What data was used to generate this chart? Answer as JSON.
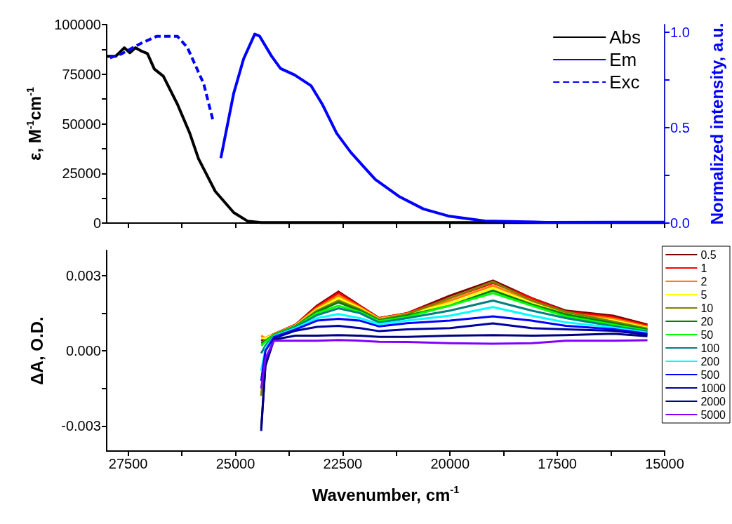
{
  "chart_data": [
    {
      "type": "line",
      "ylabel": "ε, M$^{-1}$cm$^{-1}$",
      "y2label": "Normalized intensity, a.u.",
      "xlim": [
        28000,
        15000
      ],
      "xticks": [
        27500,
        {
          "value": 26250,
          "label": null
        },
        25000,
        {
          "value": 23750,
          "label": null
        },
        22500,
        {
          "value": 21250,
          "label": null
        },
        20000,
        {
          "value": 18750,
          "label": null
        },
        17500,
        {
          "value": 16250,
          "label": null
        },
        15000
      ],
      "ylim": [
        0,
        100000
      ],
      "yticks": [
        0,
        {
          "value": 12500,
          "label": null
        },
        25000,
        {
          "value": 37500,
          "label": null
        },
        50000,
        {
          "value": 62500,
          "label": null
        },
        75000,
        {
          "value": 87500,
          "label": null
        },
        100000
      ],
      "y2lim": [
        0,
        1.04
      ],
      "y2ticks": [
        {
          "value": 0,
          "label": "0.0"
        },
        {
          "value": 0.25,
          "label": null
        },
        0.5,
        {
          "value": 0.75,
          "label": null
        },
        {
          "value": 1,
          "label": "1.0"
        }
      ],
      "tick_labels": "y",
      "legend": "top right",
      "series": [
        {
          "name": "Abs",
          "color": "#000000",
          "x": [
            28000,
            27790,
            27590,
            27460,
            27330,
            27215,
            27050,
            26890,
            26680,
            26350,
            26070,
            25860,
            25470,
            25040,
            24720,
            24400,
            23000,
            21000,
            19000,
            15000
          ],
          "values": [
            84000,
            84000,
            88300,
            85800,
            88300,
            86900,
            85400,
            77600,
            74000,
            59800,
            45600,
            32400,
            16000,
            5300,
            1000,
            300,
            300,
            300,
            300,
            300
          ]
        },
        {
          "name": "Em",
          "color": "#0000ff",
          "axis": "y2",
          "x": [
            25340,
            25040,
            24810,
            24550,
            24440,
            24160,
            23950,
            23620,
            23240,
            22970,
            22640,
            22310,
            21990,
            21740,
            21190,
            20620,
            20040,
            19190,
            17770,
            16000,
            15000
          ],
          "values": [
            0.34,
            0.68,
            0.86,
            0.99,
            0.98,
            0.875,
            0.81,
            0.776,
            0.72,
            0.62,
            0.47,
            0.37,
            0.29,
            0.228,
            0.14,
            0.074,
            0.037,
            0.011,
            0.004,
            0.005,
            0.005
          ]
        },
        {
          "name": "Exc",
          "color": "#0000ff",
          "axis": "y2",
          "line_style": "dashed",
          "x": [
            25530,
            25740,
            26120,
            26350,
            26840,
            27215,
            27660,
            28000
          ],
          "values": [
            0.544,
            0.73,
            0.92,
            0.978,
            0.978,
            0.94,
            0.886,
            0.86
          ]
        }
      ]
    },
    {
      "type": "line",
      "xlabel": "Wavenumber, cm$^{-1}$",
      "ylabel": "ΔA, O.D.",
      "xlim": [
        28000,
        15000
      ],
      "xticks": [
        27500,
        {
          "value": 26250,
          "label": null
        },
        25000,
        {
          "value": 23750,
          "label": null
        },
        22500,
        {
          "value": 21250,
          "label": null
        },
        20000,
        {
          "value": 18750,
          "label": null
        },
        17500,
        {
          "value": 16250,
          "label": null
        },
        15000
      ],
      "ylim": [
        -0.004,
        0.004
      ],
      "yticks": [
        -0.003,
        {
          "value": -0.0015,
          "label": null
        },
        {
          "value": 0,
          "label": "0.000"
        },
        {
          "value": 0.0015,
          "label": null
        },
        0.003
      ],
      "legend": "right",
      "x": [
        24400,
        24300,
        24100,
        23600,
        23100,
        22600,
        22100,
        21650,
        21000,
        20000,
        19000,
        18100,
        17300,
        16200,
        15400
      ],
      "series": [
        {
          "name": "0.5",
          "color": "#800000",
          "values": [
            0.0004,
            0.0005,
            0.00067,
            0.00104,
            0.0018,
            0.00236,
            0.0018,
            0.0013,
            0.0015,
            0.0022,
            0.0028,
            0.0021,
            0.0016,
            0.0014,
            0.00104
          ]
        },
        {
          "name": "1",
          "color": "#ff0000",
          "values": [
            0.0005,
            0.0005,
            0.00067,
            0.00104,
            0.00175,
            0.0023,
            0.00178,
            0.0013,
            0.0015,
            0.0021,
            0.0027,
            0.0021,
            0.00155,
            0.00134,
            0.001
          ]
        },
        {
          "name": "2",
          "color": "#ff8000",
          "values": [
            0.0006,
            0.0005,
            0.00066,
            0.00102,
            0.0017,
            0.0022,
            0.00174,
            0.00128,
            0.00148,
            0.002,
            0.0026,
            0.002,
            0.0015,
            0.00128,
            0.00096
          ]
        },
        {
          "name": "5",
          "color": "#ffff00",
          "values": [
            0.0005,
            0.0005,
            0.00065,
            0.001,
            0.00165,
            0.0021,
            0.0017,
            0.00126,
            0.00145,
            0.0019,
            0.0025,
            0.0019,
            0.00145,
            0.00122,
            0.00092
          ]
        },
        {
          "name": "10",
          "color": "#808000",
          "values": [
            -0.0018,
            0.0002,
            0.00064,
            0.00098,
            0.0016,
            0.002,
            0.00165,
            0.00124,
            0.00145,
            0.0021,
            0.00275,
            0.002,
            0.00155,
            0.00116,
            0.00088
          ]
        },
        {
          "name": "20",
          "color": "#008000",
          "values": [
            0.0003,
            0.0004,
            0.00064,
            0.00098,
            0.00155,
            0.00193,
            0.0016,
            0.0012,
            0.0014,
            0.0018,
            0.0024,
            0.00185,
            0.00145,
            0.0011,
            0.00084
          ]
        },
        {
          "name": "50",
          "color": "#00ff00",
          "values": [
            0.0002,
            0.00035,
            0.00062,
            0.00096,
            0.0015,
            0.00179,
            0.00155,
            0.00118,
            0.00135,
            0.0018,
            0.0023,
            0.0018,
            0.00137,
            0.00104,
            0.0008
          ]
        },
        {
          "name": "100",
          "color": "#008080",
          "values": [
            -0.0001,
            0.0002,
            0.0006,
            0.00094,
            0.00142,
            0.00169,
            0.0015,
            0.00112,
            0.0013,
            0.0016,
            0.002,
            0.0016,
            0.0013,
            0.00098,
            0.00076
          ]
        },
        {
          "name": "200",
          "color": "#00ffff",
          "values": [
            -0.0008,
            0.0001,
            0.00058,
            0.0009,
            0.0013,
            0.00146,
            0.0013,
            0.00106,
            0.0012,
            0.0014,
            0.00174,
            0.0014,
            0.00113,
            0.00092,
            0.00072
          ]
        },
        {
          "name": "500",
          "color": "#0000ff",
          "values": [
            -0.0012,
            0,
            0.00055,
            0.00085,
            0.0012,
            0.00127,
            0.0012,
            0.00097,
            0.0011,
            0.0012,
            0.00137,
            0.0012,
            0.00099,
            0.00086,
            0.00068
          ]
        },
        {
          "name": "1000",
          "color": "#0000a0",
          "values": [
            -0.0032,
            -0.0005,
            0.0005,
            0.0008,
            0.00095,
            0.00099,
            0.0009,
            0.00078,
            0.00085,
            0.0009,
            0.00109,
            0.0009,
            0.00085,
            0.0008,
            0.00064
          ]
        },
        {
          "name": "2000",
          "color": "#000080",
          "values": [
            -0.0031,
            -0.0006,
            0.00045,
            0.0006,
            0.0006,
            0.00062,
            0.0006,
            0.00055,
            0.00055,
            0.0006,
            0.00062,
            0.0006,
            0.00062,
            0.00068,
            0.00058
          ]
        },
        {
          "name": "5000",
          "color": "#8000ff",
          "values": [
            -0.0015,
            -0.0003,
            0.0004,
            0.0004,
            0.0004,
            0.00043,
            0.0004,
            0.00036,
            0.00035,
            0.0003,
            0.00028,
            0.0003,
            0.0004,
            0.0004,
            0.00042
          ]
        }
      ]
    }
  ]
}
